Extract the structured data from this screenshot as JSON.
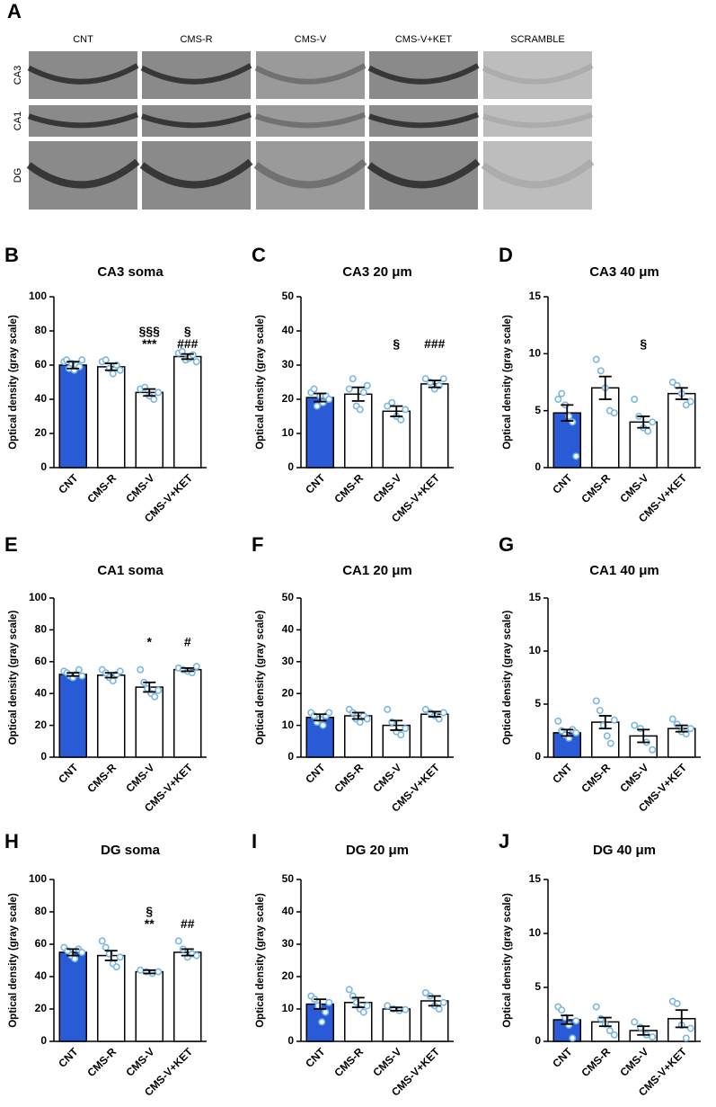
{
  "panel_a": {
    "panel": "A",
    "columns": [
      "CNT",
      "CMS-R",
      "CMS-V",
      "CMS-V+KET",
      "SCRAMBLE"
    ],
    "rows": [
      "CA3",
      "CA1",
      "DG"
    ]
  },
  "chart_data": [
    {
      "type": "bar",
      "panel": "B",
      "title": "CA3 soma",
      "ylabel": "Optical density (gray scale)",
      "categories": [
        "CNT",
        "CMS-R",
        "CMS-V",
        "CMS-V+KET"
      ],
      "values": [
        60,
        59,
        44,
        65
      ],
      "errors": [
        2,
        2,
        2,
        1.5
      ],
      "points": [
        [
          62,
          63,
          58,
          61,
          57,
          60,
          59,
          63
        ],
        [
          62,
          63,
          58,
          55,
          60,
          57
        ],
        [
          46,
          47,
          42,
          40,
          44
        ],
        [
          67,
          68,
          63,
          64,
          66,
          62
        ]
      ],
      "annotations": [
        null,
        null,
        [
          "§§§",
          "***"
        ],
        [
          "§",
          "###"
        ]
      ],
      "bar_colors": [
        "#2a5bd7",
        "#ffffff",
        "#ffffff",
        "#ffffff"
      ],
      "point_color": "#7ab8e0",
      "ylim": [
        0,
        100
      ],
      "yticks": [
        0,
        20,
        40,
        60,
        80,
        100
      ]
    },
    {
      "type": "bar",
      "panel": "C",
      "title": "CA3 20 μm",
      "ylabel": "Optical density (gray scale)",
      "categories": [
        "CNT",
        "CMS-R",
        "CMS-V",
        "CMS-V+KET"
      ],
      "values": [
        20.5,
        21.5,
        16.5,
        24.5
      ],
      "errors": [
        1.2,
        2,
        1.5,
        1
      ],
      "points": [
        [
          22,
          23,
          18,
          21,
          19,
          21,
          20
        ],
        [
          23,
          26,
          18,
          17,
          22,
          24
        ],
        [
          18,
          19,
          15,
          14,
          17
        ],
        [
          26,
          25,
          23,
          24,
          26
        ]
      ],
      "annotations": [
        null,
        null,
        [
          "§"
        ],
        [
          "###"
        ]
      ],
      "bar_colors": [
        "#2a5bd7",
        "#ffffff",
        "#ffffff",
        "#ffffff"
      ],
      "point_color": "#7ab8e0",
      "ylim": [
        0,
        50
      ],
      "yticks": [
        0,
        10,
        20,
        30,
        40,
        50
      ]
    },
    {
      "type": "bar",
      "panel": "D",
      "title": "CA3 40 μm",
      "ylabel": "Optical density (gray scale)",
      "categories": [
        "CNT",
        "CMS-R",
        "CMS-V",
        "CMS-V+KET"
      ],
      "values": [
        4.8,
        7,
        4,
        6.5
      ],
      "errors": [
        0.7,
        1,
        0.5,
        0.5
      ],
      "points": [
        [
          6,
          6.5,
          5.5,
          4.5,
          4,
          1
        ],
        [
          9.5,
          8.5,
          7,
          5,
          4.8
        ],
        [
          6,
          4.5,
          3.5,
          3.2,
          4
        ],
        [
          7.5,
          7.2,
          6.5,
          5.5,
          5.8
        ]
      ],
      "annotations": [
        null,
        null,
        [
          "§"
        ],
        null
      ],
      "bar_colors": [
        "#2a5bd7",
        "#ffffff",
        "#ffffff",
        "#ffffff"
      ],
      "point_color": "#7ab8e0",
      "ylim": [
        0,
        15
      ],
      "yticks": [
        0,
        5,
        10,
        15
      ]
    },
    {
      "type": "bar",
      "panel": "E",
      "title": "CA1 soma",
      "ylabel": "Optical density (gray scale)",
      "categories": [
        "CNT",
        "CMS-R",
        "CMS-V",
        "CMS-V+KET"
      ],
      "values": [
        52,
        51.5,
        44,
        55
      ],
      "errors": [
        1,
        1.5,
        3,
        1
      ],
      "points": [
        [
          54,
          53,
          51,
          50,
          52,
          55,
          51
        ],
        [
          55,
          53,
          50,
          48,
          52,
          54
        ],
        [
          55,
          47,
          43,
          40,
          38,
          42
        ],
        [
          56,
          55,
          54,
          53,
          57
        ]
      ],
      "annotations": [
        null,
        null,
        [
          "*"
        ],
        [
          "#"
        ]
      ],
      "bar_colors": [
        "#2a5bd7",
        "#ffffff",
        "#ffffff",
        "#ffffff"
      ],
      "point_color": "#7ab8e0",
      "ylim": [
        0,
        100
      ],
      "yticks": [
        0,
        20,
        40,
        60,
        80,
        100
      ]
    },
    {
      "type": "bar",
      "panel": "F",
      "title": "CA1 20 μm",
      "ylabel": "Optical density (gray scale)",
      "categories": [
        "CNT",
        "CMS-R",
        "CMS-V",
        "CMS-V+KET"
      ],
      "values": [
        12.5,
        13,
        10,
        13.5
      ],
      "errors": [
        1,
        1,
        1.5,
        0.8
      ],
      "points": [
        [
          14,
          13,
          11,
          12,
          10,
          13,
          14
        ],
        [
          15,
          14,
          12,
          11,
          13,
          12
        ],
        [
          15,
          11,
          8,
          7,
          9
        ],
        [
          15,
          14,
          13,
          12,
          14
        ]
      ],
      "bar_colors": [
        "#2a5bd7",
        "#ffffff",
        "#ffffff",
        "#ffffff"
      ],
      "point_color": "#7ab8e0",
      "ylim": [
        0,
        50
      ],
      "yticks": [
        0,
        10,
        20,
        30,
        40,
        50
      ]
    },
    {
      "type": "bar",
      "panel": "G",
      "title": "CA1 40 μm",
      "ylabel": "Optical density (gray scale)",
      "categories": [
        "CNT",
        "CMS-R",
        "CMS-V",
        "CMS-V+KET"
      ],
      "values": [
        2.3,
        3.3,
        2,
        2.7
      ],
      "errors": [
        0.3,
        0.6,
        0.6,
        0.3
      ],
      "points": [
        [
          3.4,
          2.5,
          2.1,
          1.8,
          2.6,
          2.3
        ],
        [
          5.3,
          4.4,
          3,
          2,
          1.3,
          3.5
        ],
        [
          3,
          2.7,
          1.4,
          0.7
        ],
        [
          3.6,
          3.1,
          2.4,
          2.2,
          2.7
        ]
      ],
      "bar_colors": [
        "#2a5bd7",
        "#ffffff",
        "#ffffff",
        "#ffffff"
      ],
      "point_color": "#7ab8e0",
      "ylim": [
        0,
        15
      ],
      "yticks": [
        0,
        5,
        10,
        15
      ]
    },
    {
      "type": "bar",
      "panel": "H",
      "title": "DG soma",
      "ylabel": "Optical density (gray scale)",
      "categories": [
        "CNT",
        "CMS-R",
        "CMS-V",
        "CMS-V+KET"
      ],
      "values": [
        55,
        53,
        43,
        55
      ],
      "errors": [
        2,
        3,
        1,
        2
      ],
      "points": [
        [
          58,
          56,
          53,
          51,
          57,
          55
        ],
        [
          62,
          58,
          54,
          48,
          46,
          52
        ],
        [
          44,
          43,
          42,
          43
        ],
        [
          62,
          57,
          52,
          54,
          53
        ]
      ],
      "annotations": [
        null,
        null,
        [
          "§",
          "**"
        ],
        [
          "##"
        ]
      ],
      "bar_colors": [
        "#2a5bd7",
        "#ffffff",
        "#ffffff",
        "#ffffff"
      ],
      "point_color": "#7ab8e0",
      "ylim": [
        0,
        100
      ],
      "yticks": [
        0,
        20,
        40,
        60,
        80,
        100
      ]
    },
    {
      "type": "bar",
      "panel": "I",
      "title": "DG 20 μm",
      "ylabel": "Optical density (gray scale)",
      "categories": [
        "CNT",
        "CMS-R",
        "CMS-V",
        "CMS-V+KET"
      ],
      "values": [
        11.5,
        12,
        10,
        12.5
      ],
      "errors": [
        1.5,
        1.5,
        0.5,
        1.5
      ],
      "points": [
        [
          14,
          13,
          11,
          6,
          9,
          12
        ],
        [
          16,
          14,
          12,
          10,
          9,
          11
        ],
        [
          11,
          10,
          9.5,
          9.8
        ],
        [
          15,
          14,
          11,
          10,
          12
        ]
      ],
      "bar_colors": [
        "#2a5bd7",
        "#ffffff",
        "#ffffff",
        "#ffffff"
      ],
      "point_color": "#7ab8e0",
      "ylim": [
        0,
        50
      ],
      "yticks": [
        0,
        10,
        20,
        30,
        40,
        50
      ]
    },
    {
      "type": "bar",
      "panel": "J",
      "title": "DG 40 μm",
      "ylabel": "Optical density (gray scale)",
      "categories": [
        "CNT",
        "CMS-R",
        "CMS-V",
        "CMS-V+KET"
      ],
      "values": [
        2,
        1.8,
        1,
        2.1
      ],
      "errors": [
        0.4,
        0.4,
        0.4,
        0.8
      ],
      "points": [
        [
          3.2,
          2.9,
          2.2,
          1.5,
          0.3,
          1.9
        ],
        [
          3.2,
          2.1,
          1.6,
          1,
          0.6
        ],
        [
          1.8,
          1.3,
          0.6,
          0.4
        ],
        [
          3.7,
          3.5,
          1.5,
          0.3,
          1.2
        ]
      ],
      "bar_colors": [
        "#2a5bd7",
        "#ffffff",
        "#ffffff",
        "#ffffff"
      ],
      "point_color": "#7ab8e0",
      "ylim": [
        0,
        15
      ],
      "yticks": [
        0,
        5,
        10,
        15
      ]
    }
  ]
}
